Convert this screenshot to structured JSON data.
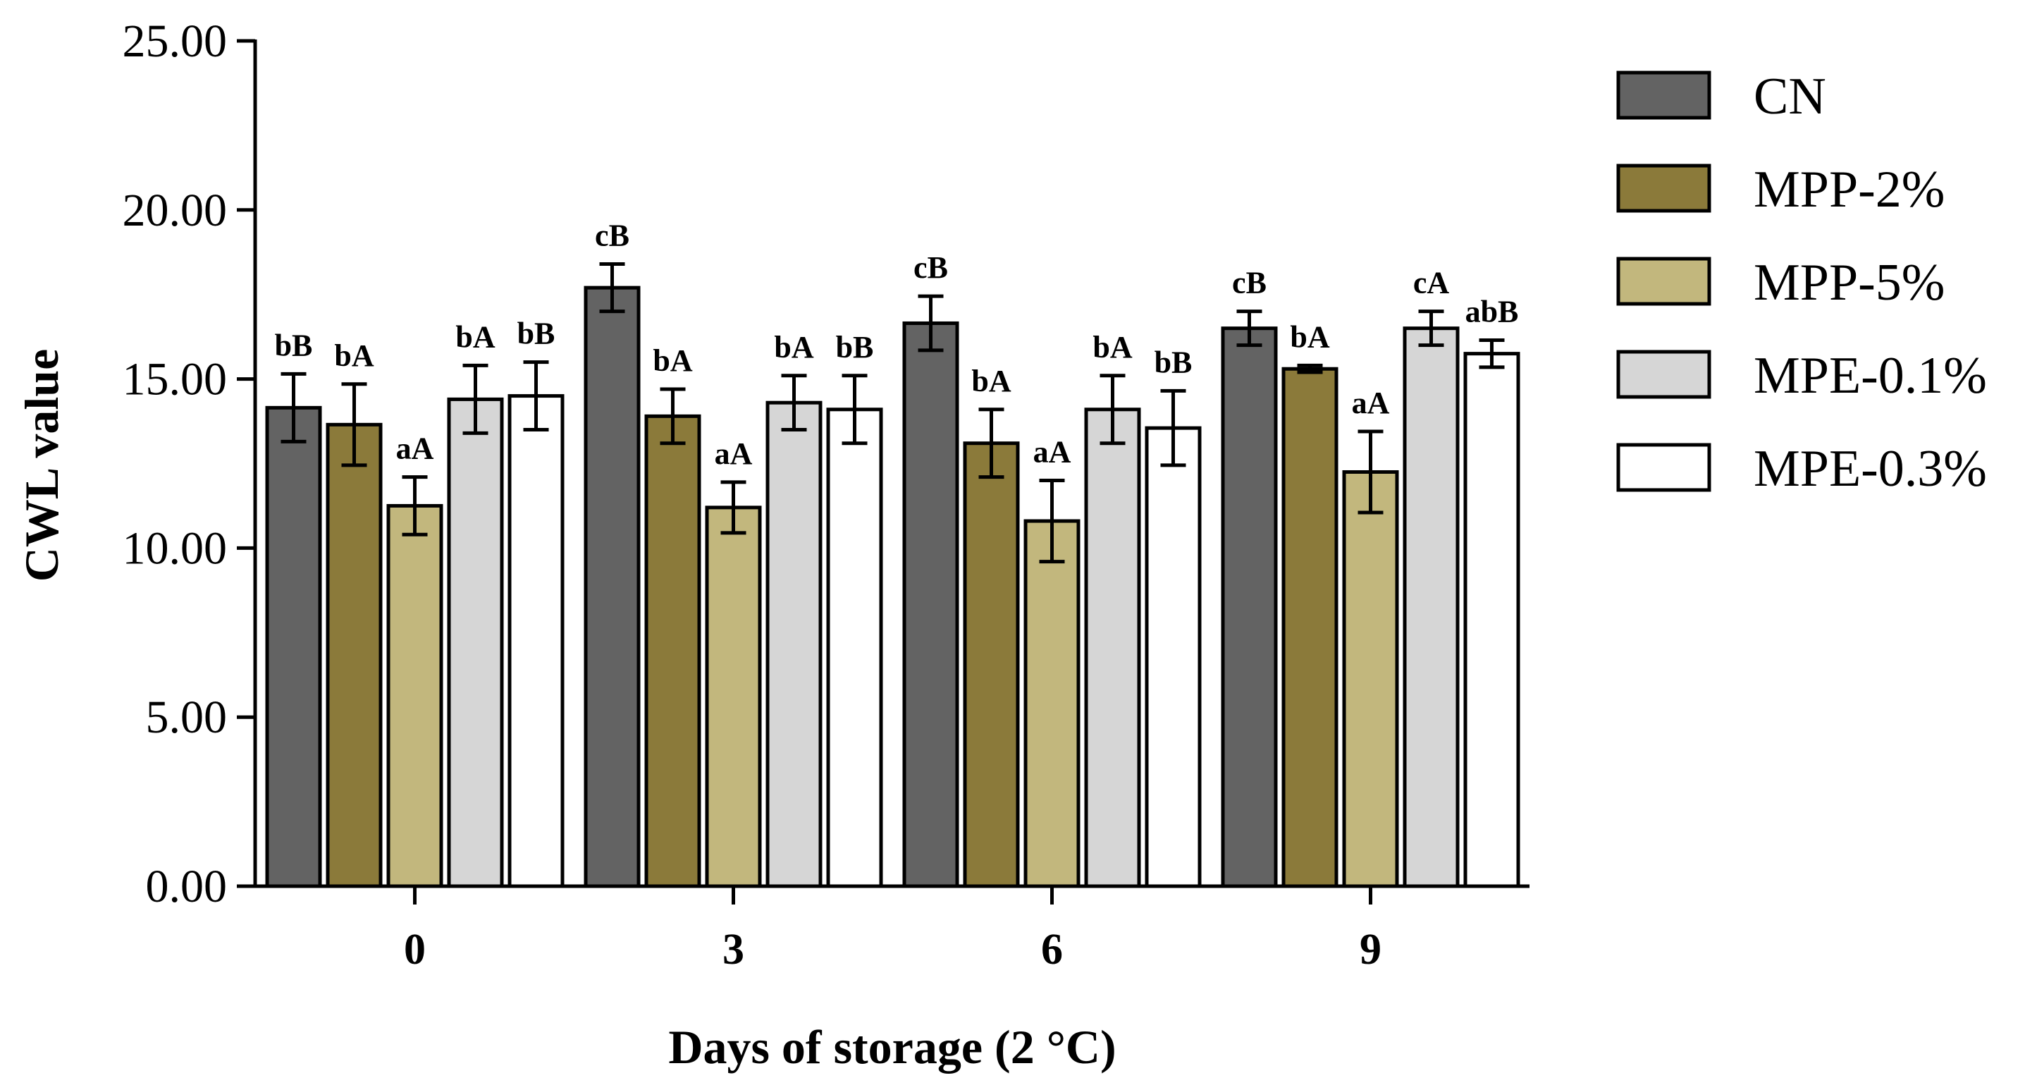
{
  "chart_data": {
    "type": "bar",
    "title": "",
    "xlabel": "Days of storage (2 °C)",
    "ylabel": "CWL value",
    "ylim": [
      0,
      25
    ],
    "yticks": [
      "0.00",
      "5.00",
      "10.00",
      "15.00",
      "20.00",
      "25.00"
    ],
    "categories": [
      "0",
      "3",
      "6",
      "9"
    ],
    "series": [
      {
        "name": "CN",
        "color": "#636363",
        "values": [
          14.15,
          17.7,
          16.65,
          16.5
        ],
        "errors": [
          1.0,
          0.7,
          0.8,
          0.5
        ],
        "labels": [
          "bB",
          "cB",
          "cB",
          "cB"
        ]
      },
      {
        "name": "MPP-2%",
        "color": "#8b7a3a",
        "values": [
          13.65,
          13.9,
          13.1,
          15.3
        ],
        "errors": [
          1.2,
          0.8,
          1.0,
          0.1
        ],
        "labels": [
          "bA",
          "bA",
          "bA",
          "bA"
        ]
      },
      {
        "name": "MPP-5%",
        "color": "#c2b77d",
        "values": [
          11.25,
          11.2,
          10.8,
          12.25
        ],
        "errors": [
          0.85,
          0.75,
          1.2,
          1.2
        ],
        "labels": [
          "aA",
          "aA",
          "aA",
          "aA"
        ]
      },
      {
        "name": "MPE-0.1%",
        "color": "#d6d6d6",
        "values": [
          14.4,
          14.3,
          14.1,
          16.5
        ],
        "errors": [
          1.0,
          0.8,
          1.0,
          0.5
        ],
        "labels": [
          "bA",
          "bA",
          "bA",
          "cA"
        ]
      },
      {
        "name": "MPE-0.3%",
        "color": "#ffffff",
        "values": [
          14.5,
          14.1,
          13.55,
          15.75
        ],
        "errors": [
          1.0,
          1.0,
          1.1,
          0.4
        ],
        "labels": [
          "bB",
          "bB",
          "bB",
          "abB"
        ]
      }
    ],
    "legend": "right"
  }
}
